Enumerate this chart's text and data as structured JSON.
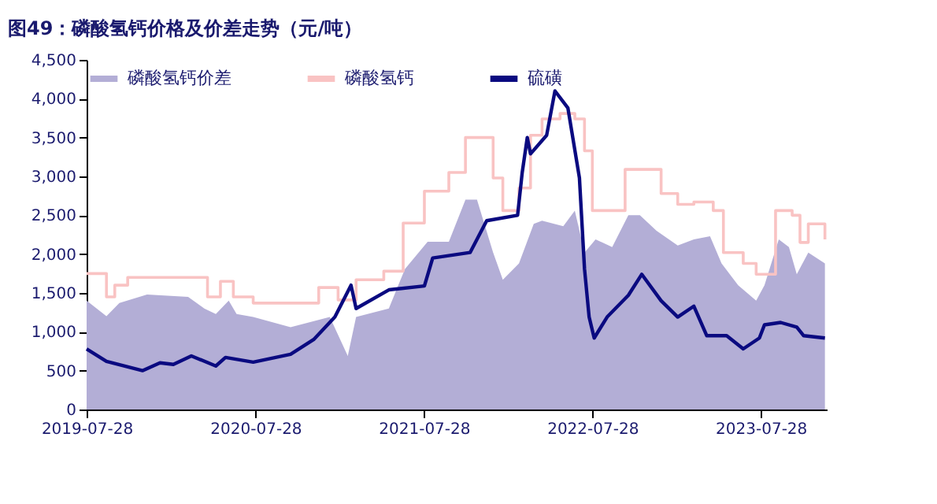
{
  "chart_data": {
    "type": "line",
    "title": "图49：磷酸氢钙价格及价差走势（元/吨）",
    "xlim": [
      "2019-07-28",
      "2023-12-18"
    ],
    "xticks": [
      "2019-07-28",
      "2020-07-28",
      "2021-07-28",
      "2022-07-28",
      "2023-07-28"
    ],
    "ylim": [
      0,
      4500
    ],
    "yticks": [
      0,
      {
        "value": 500,
        "label": "500"
      },
      {
        "value": 1000,
        "label": "1,000"
      },
      {
        "value": 1500,
        "label": "1,500"
      },
      {
        "value": 2000,
        "label": "2,000"
      },
      {
        "value": 2500,
        "label": "2,500"
      },
      {
        "value": 3000,
        "label": "3,000"
      },
      {
        "value": 3500,
        "label": "3,500"
      },
      {
        "value": 4000,
        "label": "4,000"
      },
      {
        "value": 4500,
        "label": "4,500"
      }
    ],
    "legend": "top",
    "grid": false,
    "series": [
      {
        "name": "磷酸氢钙价差",
        "type": "area",
        "color": "#b3aed6",
        "x": [
          "2019-07-28",
          "2019-09-09",
          "2019-10-07",
          "2019-12-06",
          "2020-03-04",
          "2020-04-08",
          "2020-05-03",
          "2020-05-31",
          "2020-06-17",
          "2020-07-23",
          "2020-10-12",
          "2021-01-05",
          "2021-02-13",
          "2021-03-03",
          "2021-05-13",
          "2021-06-17",
          "2021-08-05",
          "2021-09-20",
          "2021-10-26",
          "2021-11-20",
          "2021-12-25",
          "2022-01-15",
          "2022-02-19",
          "2022-03-23",
          "2022-04-10",
          "2022-05-26",
          "2022-06-20",
          "2022-07-11",
          "2022-08-04",
          "2022-09-09",
          "2022-10-14",
          "2022-11-08",
          "2022-12-14",
          "2023-01-29",
          "2023-03-05",
          "2023-04-09",
          "2023-05-04",
          "2023-06-09",
          "2023-07-18",
          "2023-08-05",
          "2023-09-05",
          "2023-09-27",
          "2023-10-14",
          "2023-11-08",
          "2023-12-14"
        ],
        "values": [
          1400,
          1200,
          1370,
          1480,
          1450,
          1300,
          1230,
          1400,
          1230,
          1190,
          1060,
          1190,
          690,
          1190,
          1300,
          1810,
          2160,
          2160,
          2700,
          2700,
          2020,
          1670,
          1880,
          2390,
          2430,
          2360,
          2560,
          2020,
          2190,
          2090,
          2500,
          2500,
          2300,
          2110,
          2190,
          2230,
          1880,
          1600,
          1400,
          1600,
          2190,
          2090,
          1740,
          2020,
          1880
        ]
      },
      {
        "name": "磷酸氢钙",
        "type": "step",
        "color": "#f9c3c3",
        "x": [
          "2019-07-28",
          "2019-09-09",
          "2019-09-27",
          "2019-10-25",
          "2020-03-04",
          "2020-04-15",
          "2020-05-13",
          "2020-06-10",
          "2020-07-23",
          "2020-12-12",
          "2021-01-23",
          "2021-03-03",
          "2021-05-02",
          "2021-06-13",
          "2021-07-29",
          "2021-09-20",
          "2021-10-26",
          "2021-11-30",
          "2021-12-25",
          "2022-01-15",
          "2022-02-19",
          "2022-03-16",
          "2022-04-10",
          "2022-05-19",
          "2022-06-20",
          "2022-07-11",
          "2022-07-28",
          "2022-09-09",
          "2022-10-07",
          "2022-11-08",
          "2022-12-24",
          "2023-01-29",
          "2023-03-05",
          "2023-04-16",
          "2023-05-08",
          "2023-06-20",
          "2023-07-18",
          "2023-08-29",
          "2023-10-04",
          "2023-10-21",
          "2023-11-08",
          "2023-12-14"
        ],
        "values": [
          1750,
          1450,
          1600,
          1700,
          1700,
          1450,
          1650,
          1450,
          1370,
          1570,
          1410,
          1670,
          1780,
          2400,
          2810,
          3050,
          3500,
          3500,
          2980,
          2560,
          2850,
          3530,
          3740,
          3810,
          3740,
          3330,
          2560,
          2560,
          3090,
          3090,
          2780,
          2640,
          2670,
          2560,
          2020,
          1880,
          1740,
          2560,
          2500,
          2150,
          2390,
          2190
        ]
      },
      {
        "name": "硫磺",
        "color": "#0a0a80",
        "x": [
          "2019-07-28",
          "2019-09-09",
          "2019-11-26",
          "2020-01-03",
          "2020-02-01",
          "2020-03-11",
          "2020-05-03",
          "2020-05-24",
          "2020-07-23",
          "2020-10-12",
          "2020-12-01",
          "2021-01-16",
          "2021-02-20",
          "2021-03-03",
          "2021-05-13",
          "2021-07-29",
          "2021-08-16",
          "2021-11-05",
          "2021-12-11",
          "2022-02-16",
          "2022-02-26",
          "2022-03-09",
          "2022-03-16",
          "2022-04-20",
          "2022-05-08",
          "2022-06-05",
          "2022-06-30",
          "2022-07-11",
          "2022-07-21",
          "2022-08-01",
          "2022-08-29",
          "2022-10-14",
          "2022-11-12",
          "2022-12-24",
          "2023-01-29",
          "2023-03-05",
          "2023-04-02",
          "2023-05-15",
          "2023-06-20",
          "2023-07-25",
          "2023-08-05",
          "2023-09-09",
          "2023-10-14",
          "2023-10-29",
          "2023-12-14"
        ],
        "values": [
          780,
          620,
          500,
          600,
          580,
          690,
          560,
          670,
          610,
          710,
          900,
          1190,
          1600,
          1300,
          1540,
          1590,
          1950,
          2020,
          2430,
          2500,
          3050,
          3500,
          3290,
          3530,
          4100,
          3880,
          2980,
          1810,
          1190,
          920,
          1190,
          1470,
          1740,
          1400,
          1190,
          1330,
          950,
          950,
          780,
          920,
          1090,
          1120,
          1060,
          950,
          920
        ]
      }
    ]
  }
}
